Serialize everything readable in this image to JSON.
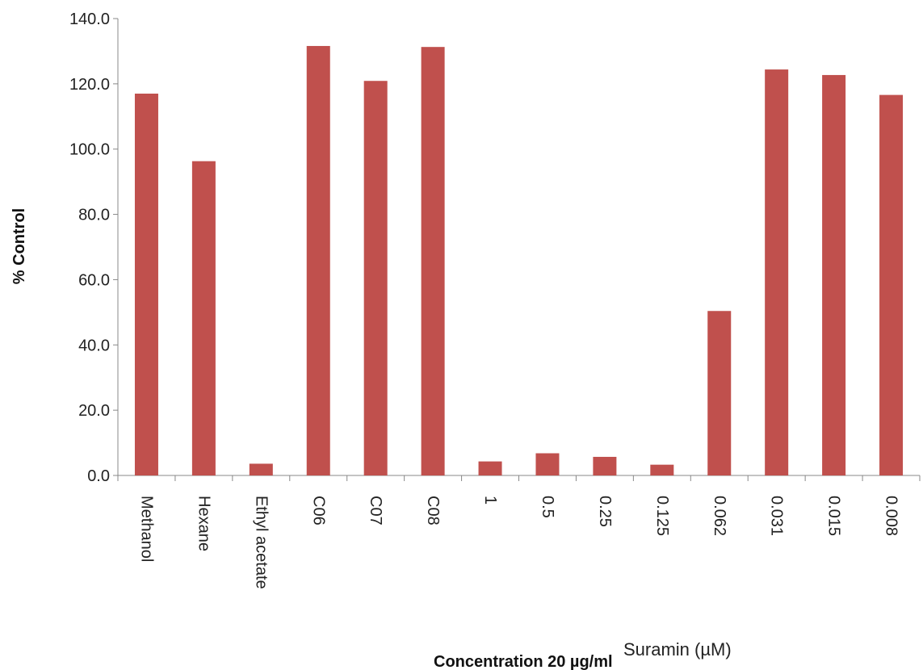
{
  "chart_data": {
    "type": "bar",
    "categories": [
      "Methanol",
      "Hexane",
      "Ethyl acetate",
      "C06",
      "C07",
      "C08",
      "1",
      "0.5",
      "0.25",
      "0.125",
      "0.062",
      "0.031",
      "0.015",
      "0.008"
    ],
    "values": [
      117.0,
      96.3,
      3.6,
      131.6,
      120.9,
      131.3,
      4.3,
      6.8,
      5.7,
      3.3,
      50.4,
      124.4,
      122.7,
      116.6
    ],
    "ylabel": "% Control",
    "xlabel_extracts": "Concentration 20 µg/ml",
    "xlabel_suramin": "Suramin (µM)",
    "ylim": [
      0,
      140
    ],
    "yticks": [
      "0.0",
      "20.0",
      "40.0",
      "60.0",
      "80.0",
      "100.0",
      "120.0",
      "140.0"
    ],
    "bar_color": "#c0504d",
    "grid": false,
    "legend": "none"
  }
}
